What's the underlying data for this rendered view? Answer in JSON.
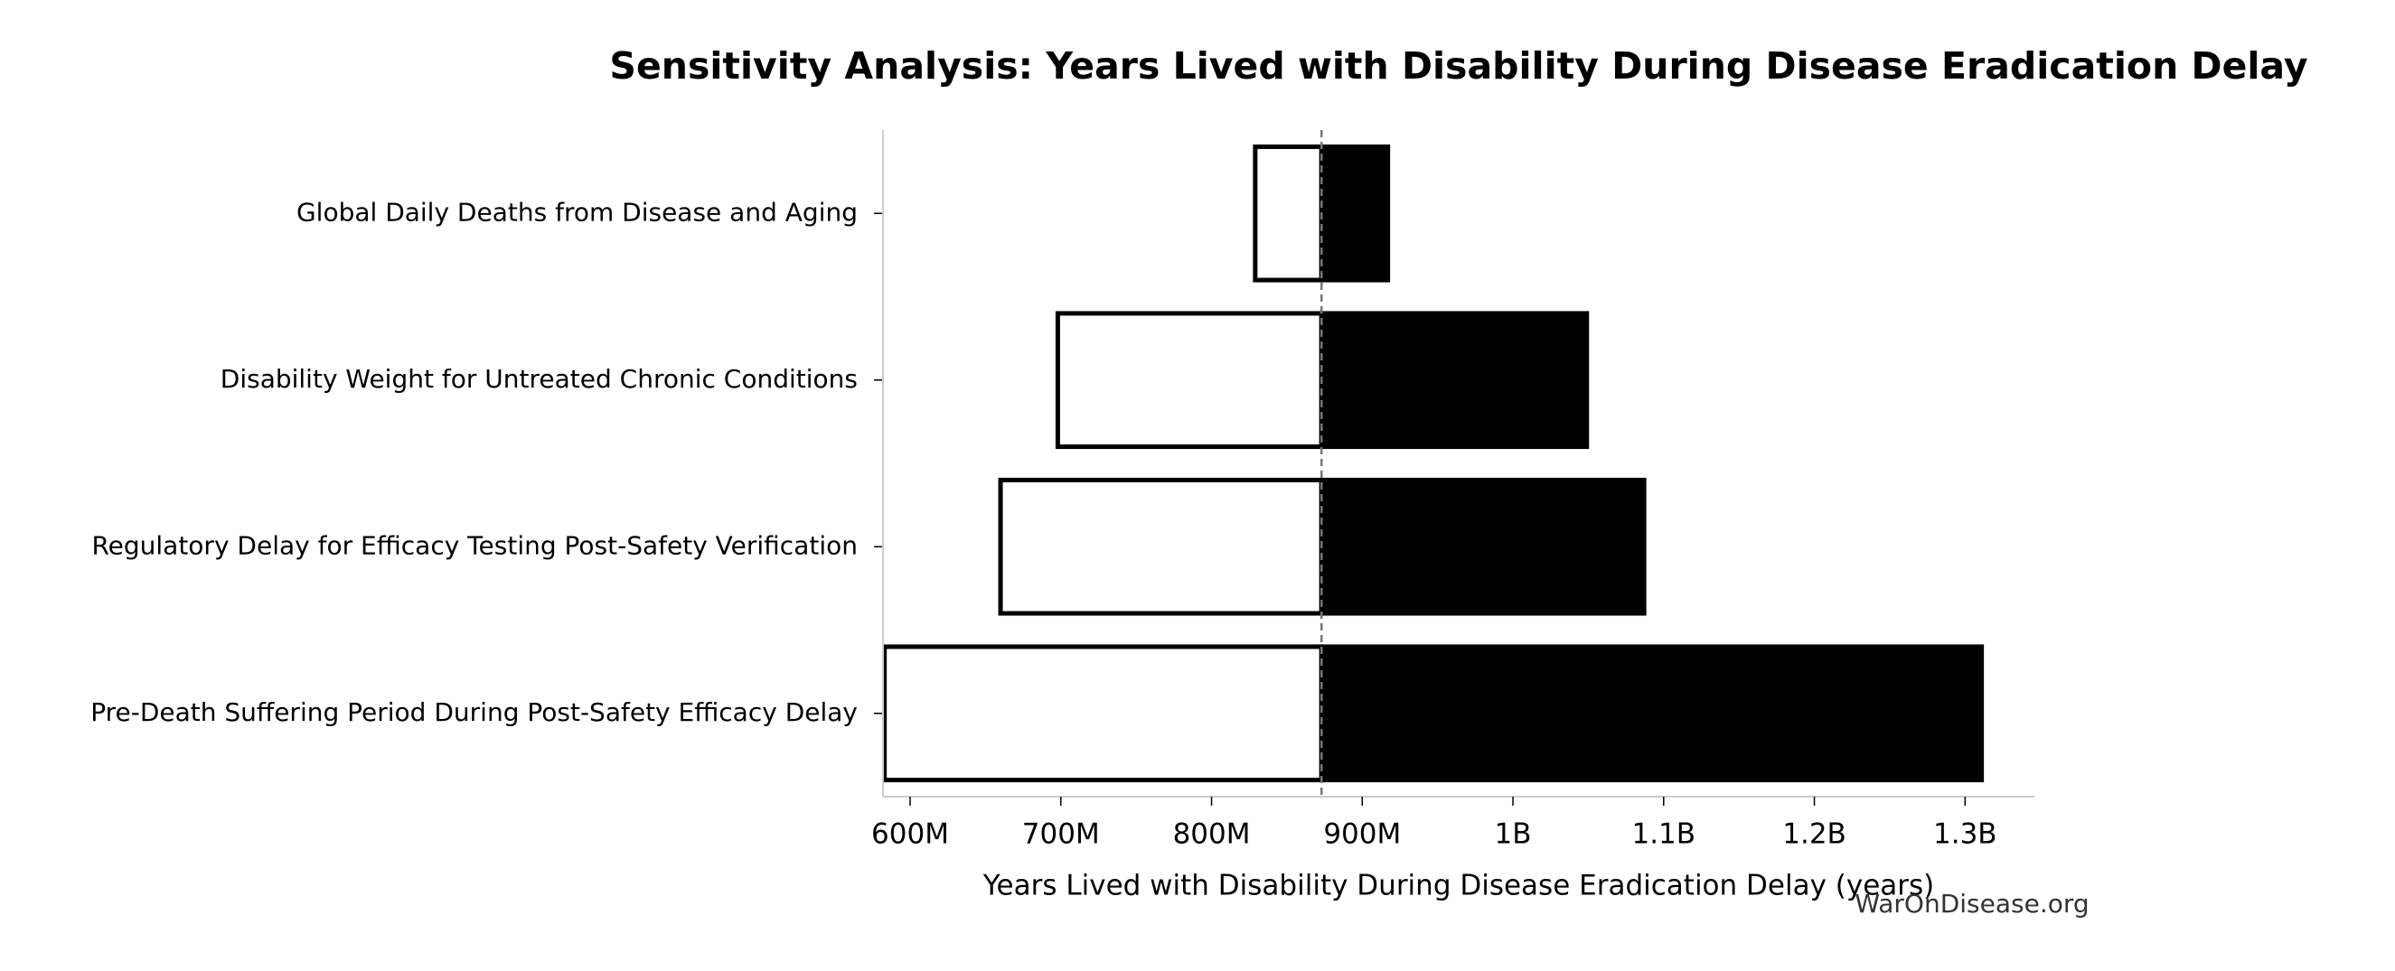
{
  "chart_data": {
    "type": "tornado",
    "title": "Sensitivity Analysis: Years Lived with Disability During Disease Eradication Delay",
    "x_label": "Years Lived with Disability During Disease Eradication Delay (years)",
    "watermark": "WarOnDisease.org",
    "categories": [
      "Global Daily Deaths from Disease and Aging",
      "Disability Weight for Untreated Chronic Conditions",
      "Regulatory Delay for Efficacy Testing Post-Safety Verification",
      "Pre-Death Suffering Period During Post-Safety Efficacy Delay"
    ],
    "baseline": 873000000,
    "series": [
      {
        "color": "#ffffff",
        "edge_color": "#000000",
        "values": [
          829000000,
          698000000,
          660000000,
          583000000
        ]
      },
      {
        "color": "#000000",
        "edge_color": "#000000",
        "values": [
          917000000,
          1049000000,
          1087000000,
          1311000000
        ]
      }
    ],
    "xlim": [
      582000000,
      1346000000
    ],
    "xticks": [
      {
        "value": 600000000,
        "label": "600M"
      },
      {
        "value": 700000000,
        "label": "700M"
      },
      {
        "value": 800000000,
        "label": "800M"
      },
      {
        "value": 900000000,
        "label": "900M"
      },
      {
        "value": 1000000000,
        "label": "1B"
      },
      {
        "value": 1100000000,
        "label": "1.1B"
      },
      {
        "value": 1200000000,
        "label": "1.2B"
      },
      {
        "value": 1300000000,
        "label": "1.3B"
      }
    ],
    "grid": false
  }
}
